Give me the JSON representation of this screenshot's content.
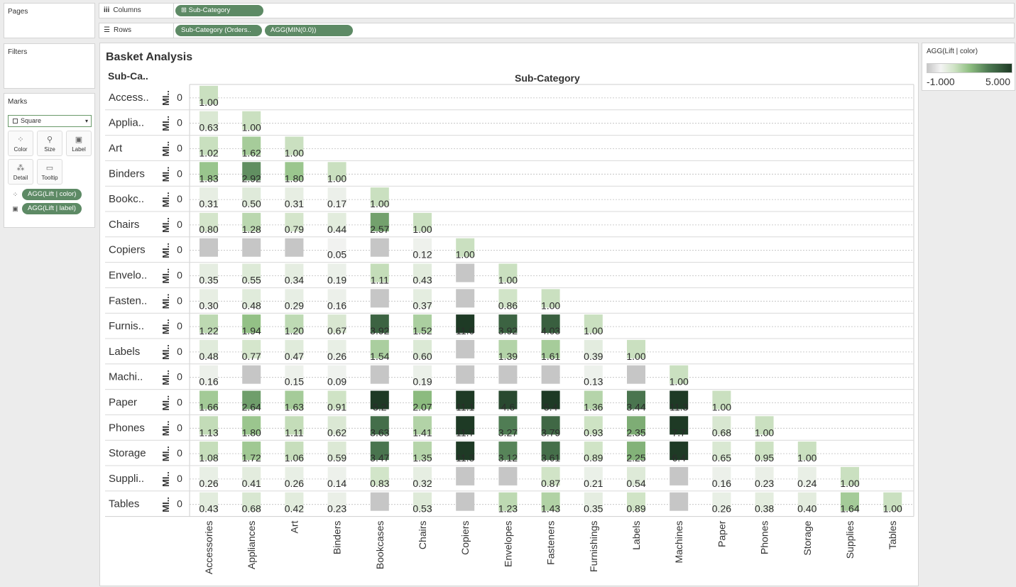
{
  "pages_label": "Pages",
  "filters_label": "Filters",
  "marks": {
    "title": "Marks",
    "type": "Square",
    "buttons": [
      {
        "label": "Color",
        "icon": "color-icon"
      },
      {
        "label": "Size",
        "icon": "size-icon"
      },
      {
        "label": "Label",
        "icon": "label-icon"
      },
      {
        "label": "Detail",
        "icon": "detail-icon"
      },
      {
        "label": "Tooltip",
        "icon": "tooltip-icon"
      }
    ],
    "fields": [
      {
        "label": "AGG(Lift | color)",
        "icon": "color-mark-icon"
      },
      {
        "label": "AGG(Lift | label)",
        "icon": "label-mark-icon"
      }
    ]
  },
  "columns": {
    "label": "Columns",
    "pills": [
      "Sub-Category"
    ]
  },
  "rows": {
    "label": "Rows",
    "pills": [
      "Sub-Category (Orders..",
      "AGG(MIN(0.0))"
    ]
  },
  "view": {
    "title": "Basket Analysis",
    "row_header": "Sub-Ca..",
    "col_header": "Sub-Category",
    "measure_header": "MI..",
    "zero_tick": "0"
  },
  "legend": {
    "title": "AGG(Lift | color)",
    "min": "-1.000",
    "max": "5.000"
  },
  "colors": {
    "pill": "#5d8a65",
    "scale": [
      "#c6c6c6",
      "#f4f4f4",
      "#cfe3c5",
      "#8fbf82",
      "#4d7a52",
      "#1e3a25"
    ]
  },
  "chart_data": {
    "type": "heatmap",
    "title": "Basket Analysis",
    "row_labels": [
      "Access..",
      "Applia..",
      "Art",
      "Binders",
      "Bookc..",
      "Chairs",
      "Copiers",
      "Envelo..",
      "Fasten..",
      "Furnis..",
      "Labels",
      "Machi..",
      "Paper",
      "Phones",
      "Storage",
      "Suppli..",
      "Tables"
    ],
    "col_labels": [
      "Accessories",
      "Appliances",
      "Art",
      "Binders",
      "Bookcases",
      "Chairs",
      "Copiers",
      "Envelopes",
      "Fasteners",
      "Furnishings",
      "Labels",
      "Machines",
      "Paper",
      "Phones",
      "Storage",
      "Supplies",
      "Tables"
    ],
    "color_range": [
      -1.0,
      5.0
    ],
    "matrix": [
      [
        1.0
      ],
      [
        0.63,
        1.0
      ],
      [
        1.02,
        1.62,
        1.0
      ],
      [
        1.83,
        2.92,
        1.8,
        1.0
      ],
      [
        0.31,
        0.5,
        0.31,
        0.17,
        1.0
      ],
      [
        0.8,
        1.28,
        0.79,
        0.44,
        2.57,
        1.0
      ],
      [
        -1,
        -1,
        -1,
        0.05,
        -1,
        0.12,
        1.0
      ],
      [
        0.35,
        0.55,
        0.34,
        0.19,
        1.11,
        0.43,
        -1,
        1.0
      ],
      [
        0.3,
        0.48,
        0.29,
        0.16,
        -1,
        0.37,
        -1,
        0.86,
        1.0
      ],
      [
        1.22,
        1.94,
        1.2,
        0.67,
        3.92,
        1.52,
        11.0,
        3.92,
        4.03,
        1.0
      ],
      [
        0.48,
        0.77,
        0.47,
        0.26,
        1.54,
        0.6,
        -1,
        1.39,
        1.61,
        0.39,
        1.0
      ],
      [
        0.16,
        -1,
        0.15,
        0.09,
        -1,
        0.19,
        -1,
        -1,
        -1,
        0.13,
        -1,
        1.0
      ],
      [
        1.66,
        2.64,
        1.63,
        0.91,
        5.2,
        2.07,
        11.1,
        4.6,
        5.4,
        1.36,
        3.44,
        11.3,
        1.0
      ],
      [
        1.13,
        1.8,
        1.11,
        0.62,
        3.63,
        1.41,
        11.7,
        3.27,
        3.79,
        0.93,
        2.35,
        7.7,
        0.68,
        1.0
      ],
      [
        1.08,
        1.72,
        1.06,
        0.59,
        3.47,
        1.35,
        11.3,
        3.12,
        3.61,
        0.89,
        2.25,
        6.4,
        0.65,
        0.95,
        1.0
      ],
      [
        0.26,
        0.41,
        0.26,
        0.14,
        0.83,
        0.32,
        -1,
        -1,
        0.87,
        0.21,
        0.54,
        -1,
        0.16,
        0.23,
        0.24,
        1.0
      ],
      [
        0.43,
        0.68,
        0.42,
        0.23,
        -1,
        0.53,
        -1,
        1.23,
        1.43,
        0.35,
        0.89,
        -1,
        0.26,
        0.38,
        0.4,
        1.64,
        1.0
      ]
    ],
    "display_labels": [
      [
        "1.00"
      ],
      [
        "0.63",
        "1.00"
      ],
      [
        "1.02",
        "1.62",
        "1.00"
      ],
      [
        "1.83",
        "2.92",
        "1.80",
        "1.00"
      ],
      [
        "0.31",
        "0.50",
        "0.31",
        "0.17",
        "1.00"
      ],
      [
        "0.80",
        "1.28",
        "0.79",
        "0.44",
        "2.57",
        "1.00"
      ],
      [
        "",
        "",
        "",
        "0.05",
        "",
        "0.12",
        "1.00"
      ],
      [
        "0.35",
        "0.55",
        "0.34",
        "0.19",
        "1.11",
        "0.43",
        "",
        "1.00"
      ],
      [
        "0.30",
        "0.48",
        "0.29",
        "0.16",
        "",
        "0.37",
        "",
        "0.86",
        "1.00"
      ],
      [
        "1.22",
        "1.94",
        "1.20",
        "0.67",
        "3.92",
        "1.52",
        "11.0",
        "3.92",
        "4.03",
        "1.00"
      ],
      [
        "0.48",
        "0.77",
        "0.47",
        "0.26",
        "1.54",
        "0.60",
        "",
        "1.39",
        "1.61",
        "0.39",
        "1.00"
      ],
      [
        "0.16",
        "",
        "0.15",
        "0.09",
        "",
        "0.19",
        "",
        "",
        "",
        "0.13",
        "",
        "1.00"
      ],
      [
        "1.66",
        "2.64",
        "1.63",
        "0.91",
        "5.2",
        "2.07",
        "11.1",
        "4.6",
        "5.4",
        "1.36",
        "3.44",
        "11.3",
        "1.00"
      ],
      [
        "1.13",
        "1.80",
        "1.11",
        "0.62",
        "3.63",
        "1.41",
        "11.7",
        "3.27",
        "3.79",
        "0.93",
        "2.35",
        "7.7",
        "0.68",
        "1.00"
      ],
      [
        "1.08",
        "1.72",
        "1.06",
        "0.59",
        "3.47",
        "1.35",
        "11.3",
        "3.12",
        "3.61",
        "0.89",
        "2.25",
        "6.4",
        "0.65",
        "0.95",
        "1.00"
      ],
      [
        "0.26",
        "0.41",
        "0.26",
        "0.14",
        "0.83",
        "0.32",
        "",
        "",
        "0.87",
        "0.21",
        "0.54",
        "",
        "0.16",
        "0.23",
        "0.24",
        "1.00"
      ],
      [
        "0.43",
        "0.68",
        "0.42",
        "0.23",
        "",
        "0.53",
        "",
        "1.23",
        "1.43",
        "0.35",
        "0.89",
        "",
        "0.26",
        "0.38",
        "0.40",
        "1.64",
        "1.00"
      ]
    ]
  }
}
